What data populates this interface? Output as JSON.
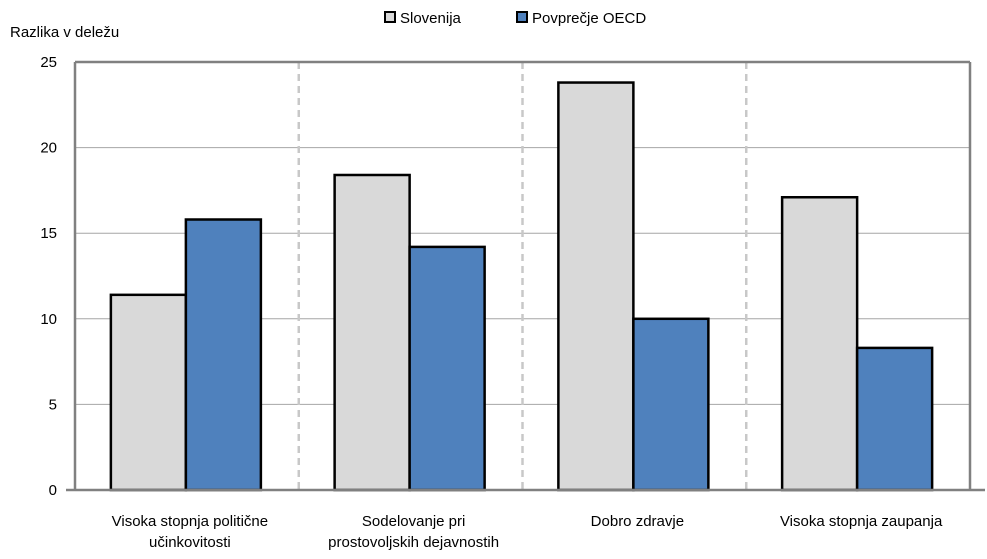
{
  "chart_data": {
    "type": "bar",
    "ylabel": "Razlika v deležu",
    "ylim": [
      0,
      25
    ],
    "yticks": [
      0,
      5,
      10,
      15,
      20,
      25
    ],
    "grid": "horizontal",
    "legend_position": "top",
    "categories": [
      [
        "Visoka stopnja politične",
        "učinkovitosti"
      ],
      [
        "Sodelovanje pri",
        "prostovoljskih dejavnostih"
      ],
      [
        "Dobro zdravje"
      ],
      [
        "Visoka stopnja zaupanja"
      ]
    ],
    "series": [
      {
        "name": "Slovenija",
        "color": "#d9d9d9",
        "values": [
          11.4,
          18.4,
          23.8,
          17.1
        ]
      },
      {
        "name": "Povprečje OECD",
        "color": "#4f81bd",
        "values": [
          15.8,
          14.2,
          10.0,
          8.3
        ]
      }
    ]
  }
}
